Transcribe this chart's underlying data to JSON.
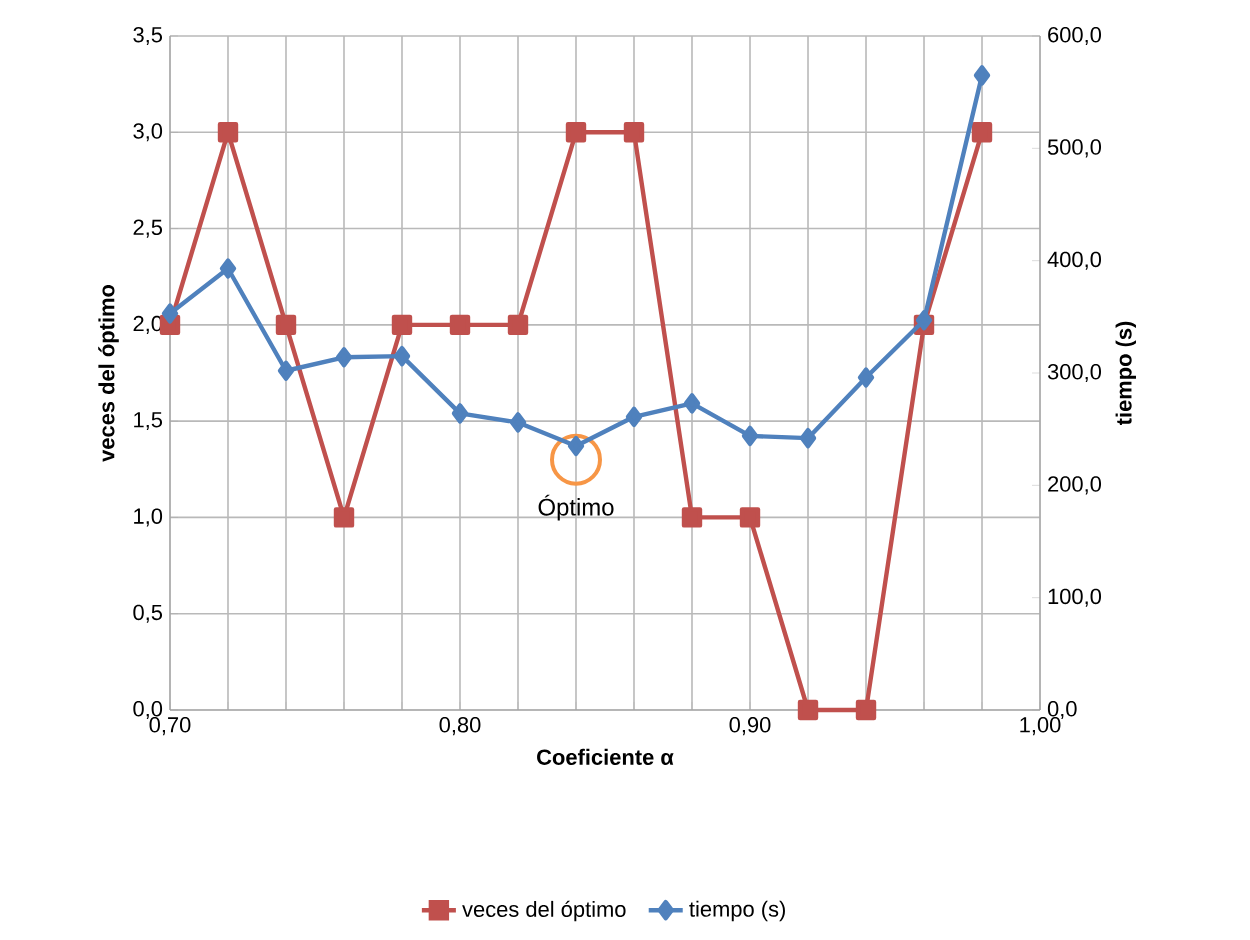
{
  "chart_data": {
    "type": "line",
    "xlabel": "Coeficiente α",
    "ylabel": "veces del óptimo",
    "y2label": "tiempo (s)",
    "x": [
      0.7,
      0.72,
      0.74,
      0.76,
      0.78,
      0.8,
      0.82,
      0.84,
      0.86,
      0.88,
      0.9,
      0.92,
      0.94,
      0.96,
      0.98
    ],
    "series": [
      {
        "name": "veces del óptimo",
        "color": "#c0504d",
        "marker": "square",
        "values": [
          2,
          3,
          2,
          1,
          2,
          2,
          2,
          3,
          3,
          1,
          1,
          0,
          0,
          2,
          3
        ]
      },
      {
        "name": "tiempo (s)",
        "color": "#4f81bd",
        "marker": "diamond",
        "axis": "y2",
        "values": [
          353,
          393,
          302,
          314,
          315,
          264,
          256,
          235,
          261,
          273,
          244,
          242,
          296,
          347,
          565
        ]
      }
    ],
    "xlim": [
      0.7,
      1.0
    ],
    "xticks": [
      {
        "value": 0.7,
        "label": "0,70"
      },
      {
        "value": 0.72,
        "label": null
      },
      {
        "value": 0.74,
        "label": null
      },
      {
        "value": 0.76,
        "label": null
      },
      {
        "value": 0.78,
        "label": null
      },
      {
        "value": 0.8,
        "label": "0,80"
      },
      {
        "value": 0.82,
        "label": null
      },
      {
        "value": 0.84,
        "label": null
      },
      {
        "value": 0.86,
        "label": null
      },
      {
        "value": 0.88,
        "label": null
      },
      {
        "value": 0.9,
        "label": "0,90"
      },
      {
        "value": 0.92,
        "label": null
      },
      {
        "value": 0.94,
        "label": null
      },
      {
        "value": 0.96,
        "label": null
      },
      {
        "value": 0.98,
        "label": null
      },
      {
        "value": 1.0,
        "label": "1,00"
      }
    ],
    "ylim": [
      0,
      3.5
    ],
    "yticks": [
      {
        "value": 0,
        "label": "0,0"
      },
      {
        "value": 0.5,
        "label": "0,5"
      },
      {
        "value": 1.0,
        "label": "1,0"
      },
      {
        "value": 1.5,
        "label": "1,5"
      },
      {
        "value": 2.0,
        "label": "2,0"
      },
      {
        "value": 2.5,
        "label": "2,5"
      },
      {
        "value": 3.0,
        "label": "3,0"
      },
      {
        "value": 3.5,
        "label": "3,5"
      }
    ],
    "y2lim": [
      0,
      600
    ],
    "y2ticks": [
      {
        "value": 0,
        "label": "0,0"
      },
      {
        "value": 100,
        "label": "100,0"
      },
      {
        "value": 200,
        "label": "200,0"
      },
      {
        "value": 300,
        "label": "300,0"
      },
      {
        "value": 400,
        "label": "400,0"
      },
      {
        "value": 500,
        "label": "500,0"
      },
      {
        "value": 600,
        "label": "600,0"
      }
    ],
    "annotations": [
      {
        "text": "Óptimo",
        "x": 0.84,
        "y": 1.3
      }
    ],
    "grid": true,
    "legend": "bottom"
  }
}
